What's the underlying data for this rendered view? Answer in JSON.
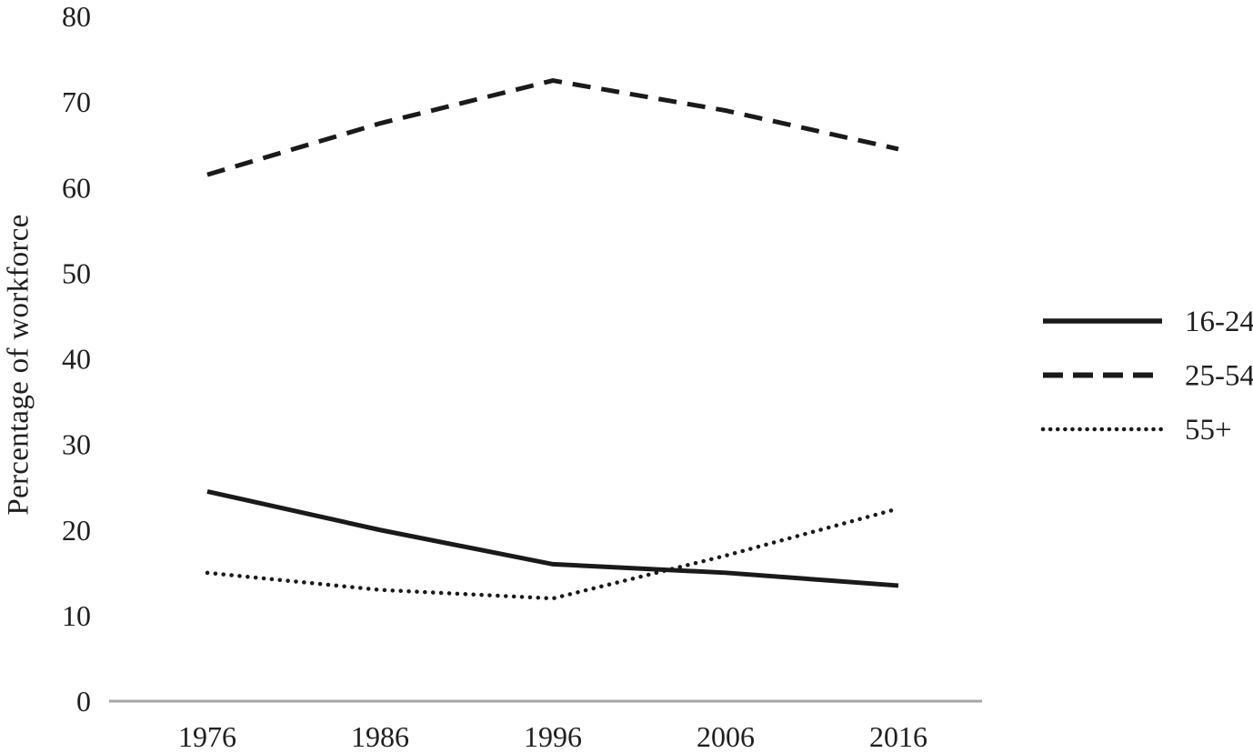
{
  "figure": {
    "background": "#ffffff",
    "text_color": "#1f1f1f"
  },
  "chart_data": {
    "type": "line",
    "title": "",
    "xlabel": "",
    "ylabel": "Percentage of workforce",
    "x": [
      1976,
      1986,
      1996,
      2006,
      2016
    ],
    "x_tick_labels": [
      "1976",
      "1986",
      "1996",
      "2006",
      "2016"
    ],
    "ylim": [
      0,
      80
    ],
    "ytick_step": 10,
    "y_tick_labels": [
      "0",
      "10",
      "20",
      "30",
      "40",
      "50",
      "60",
      "70",
      "80"
    ],
    "grid": false,
    "legend_position": "right",
    "axis_line_color": "#a6a6a6",
    "line_color": "#1a1a1a",
    "series": [
      {
        "name": "16-24",
        "line_style": "solid",
        "color": "#1a1a1a",
        "values": [
          24.5,
          20,
          16,
          15,
          13.5
        ]
      },
      {
        "name": "25-54",
        "line_style": "dashed",
        "color": "#1a1a1a",
        "values": [
          61.5,
          67.5,
          72.5,
          69,
          64.5
        ]
      },
      {
        "name": "55+",
        "line_style": "dotted",
        "color": "#1a1a1a",
        "values": [
          15,
          13,
          12,
          17,
          22.5
        ]
      }
    ]
  }
}
